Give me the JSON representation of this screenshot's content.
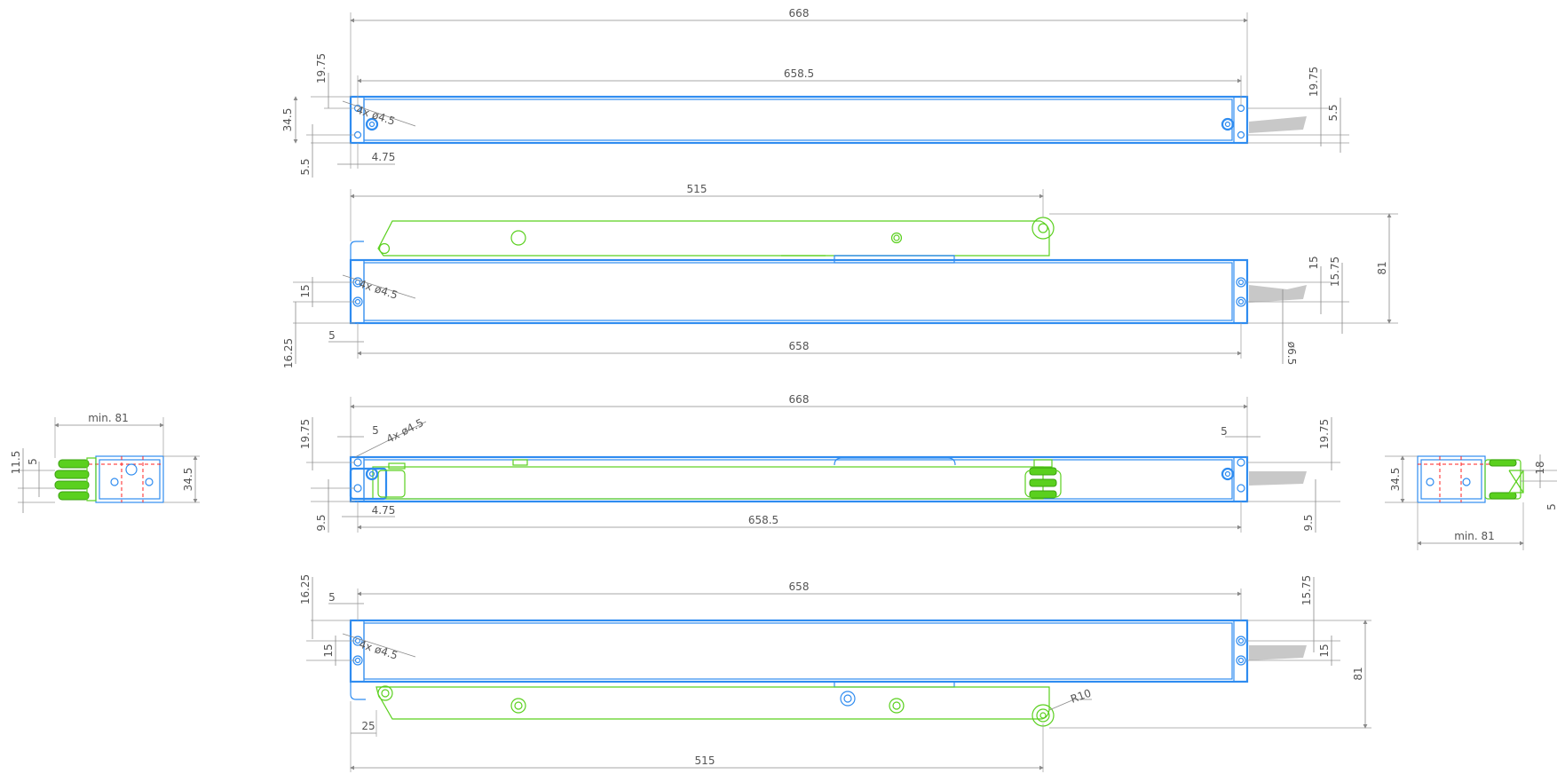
{
  "colors": {
    "housing": "#2f8cf0",
    "arm": "#5ad01e",
    "arm_dark": "#3aa010",
    "centerline": "#ff2020",
    "cable": "#c8c8c8",
    "dimension": "#8a8a8a"
  },
  "views": {
    "top_view": {
      "overall_length": "668",
      "hole_span": "658.5",
      "left_top_offset": "19.75",
      "width": "34.5",
      "left_bottom_offset": "5.5",
      "hole_label": "4x ø4.5",
      "edge_offset": "4.75",
      "right_top_offset": "19.75",
      "right_bottom_offset": "5.5"
    },
    "side_view_open_upper": {
      "arm_length": "515",
      "hole_label": "4x ø4.5",
      "hole_pitch_left": "15",
      "bottom_offset": "16.25",
      "edge_offset": "5",
      "hole_span": "658",
      "right_pitch": "15",
      "right_offset": "15.75",
      "height_open": "81",
      "cable_dia": "ø6.5"
    },
    "bottom_view": {
      "overall_length": "668",
      "left_top_offset": "19.75",
      "edge_offset_left": "5",
      "hole_label": "4x ø4.5",
      "edge_offset_right": "5",
      "right_top_offset": "19.75",
      "left_bottom_offset": "9.5",
      "edge_offset": "4.75",
      "hole_span": "658.5",
      "right_bottom_offset": "9.5"
    },
    "side_view_open_lower": {
      "top_offset": "16.25",
      "edge_offset": "5",
      "hole_span": "658",
      "right_offset": "15.75",
      "hole_label": "4x ø4.5",
      "hole_pitch_left": "15",
      "right_pitch": "15",
      "height_open": "81",
      "radius": "R10",
      "arm_offset": "25",
      "arm_length": "515"
    },
    "end_view_left": {
      "min_label": "min. 81",
      "height_a": "11.5",
      "height_b": "5",
      "width": "34.5"
    },
    "end_view_right": {
      "width": "34.5",
      "height": "18",
      "min_label": "min. 81",
      "cut_label": "5"
    }
  }
}
